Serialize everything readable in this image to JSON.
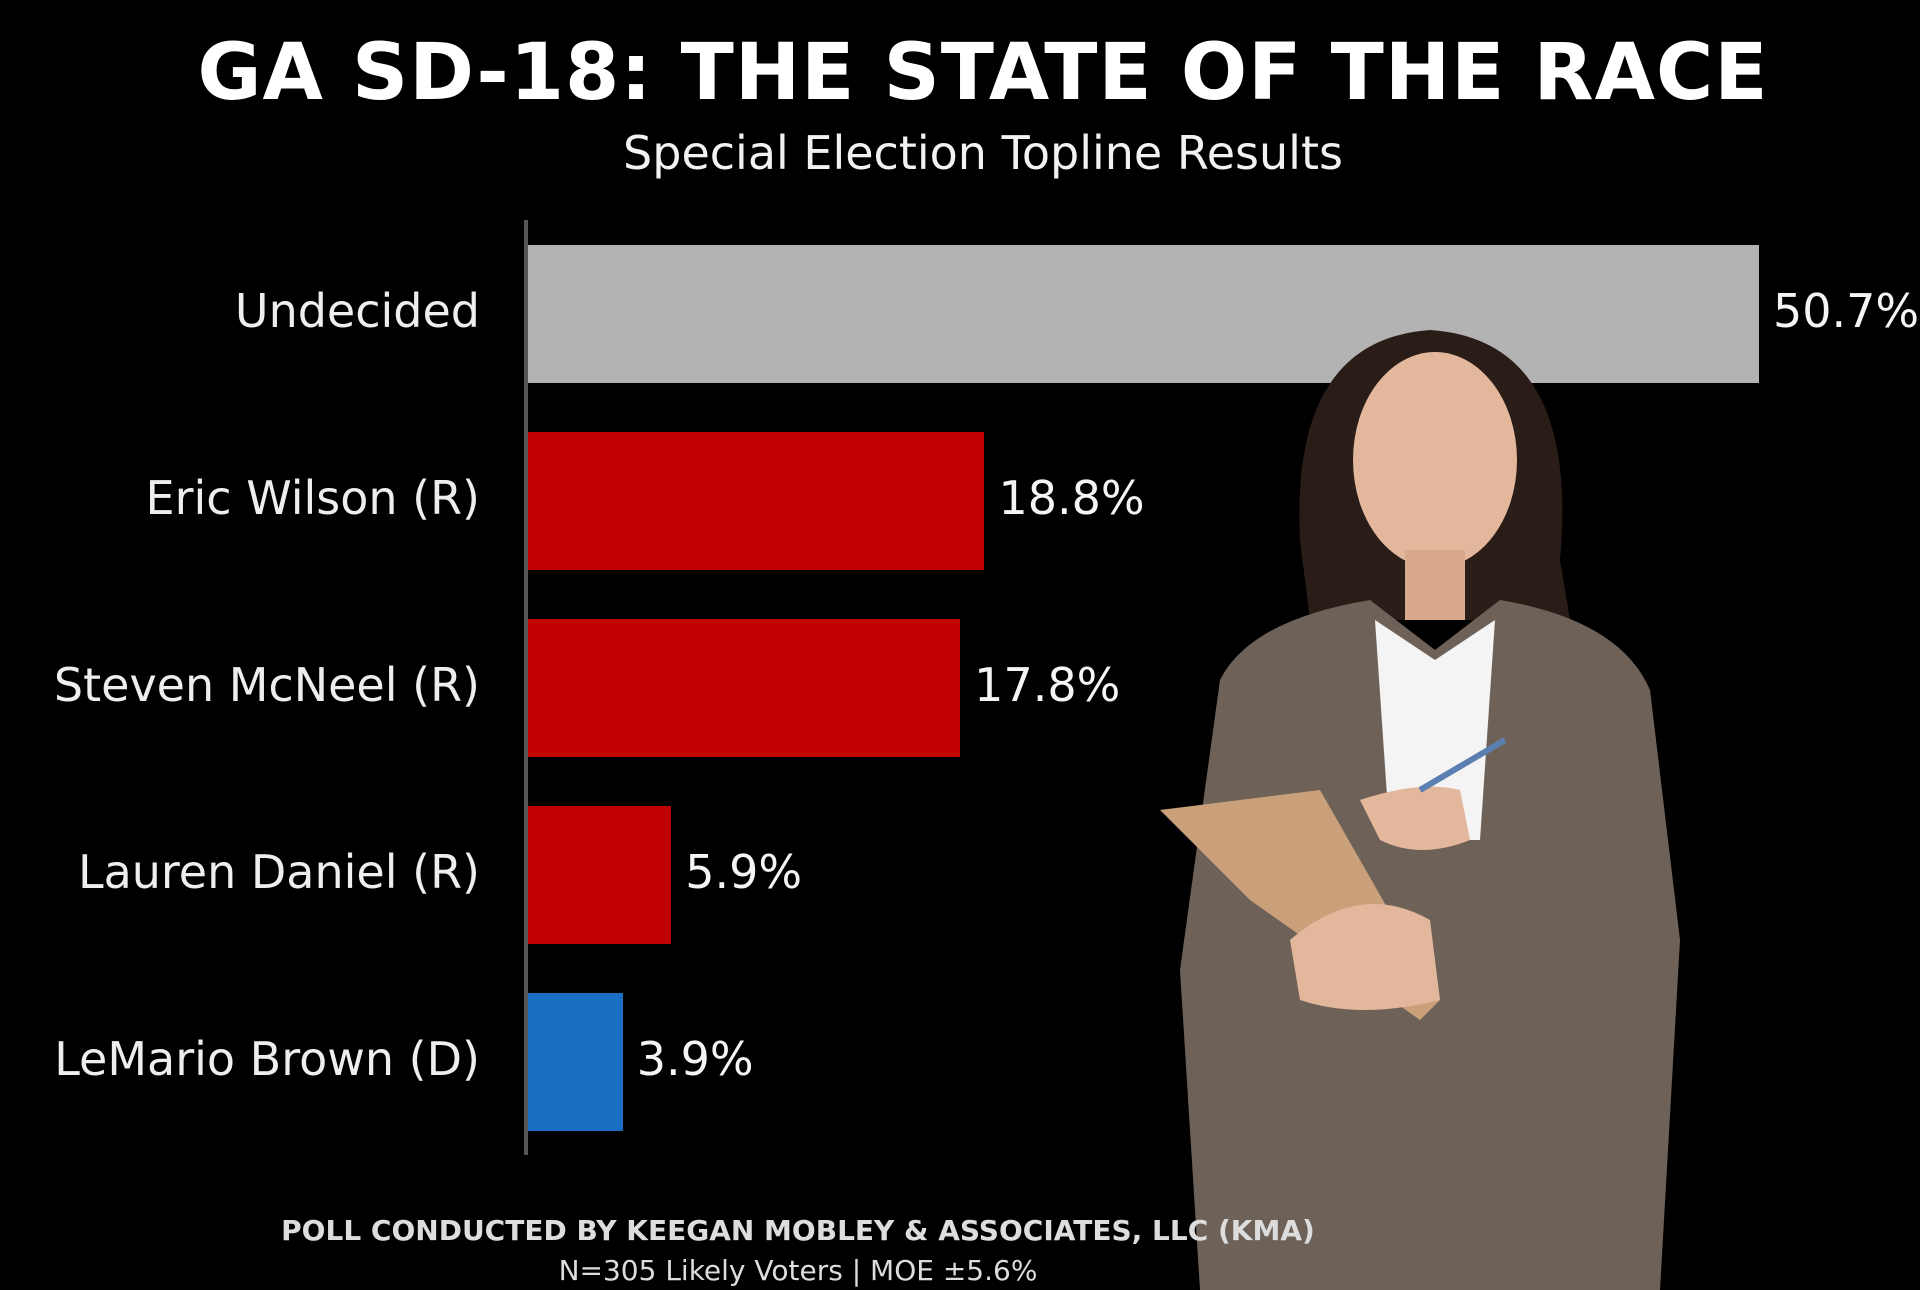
{
  "chart_data": {
    "type": "bar",
    "orientation": "horizontal",
    "title": "GA SD-18: THE STATE OF THE RACE",
    "subtitle": "Special Election Topline Results",
    "categories": [
      "Undecided",
      "Eric Wilson (R)",
      "Steven McNeel (R)",
      "Lauren Daniel (R)",
      "LeMario Brown (D)"
    ],
    "values": [
      50.7,
      18.8,
      17.8,
      5.9,
      3.9
    ],
    "value_labels": [
      "50.7%",
      "18.8%",
      "17.8%",
      "5.9%",
      "3.9%"
    ],
    "colors": [
      "#b3b3b3",
      "#c00000",
      "#c00000",
      "#c00000",
      "#1a6fc4"
    ],
    "xlim": [
      0,
      50.7
    ],
    "grid": false,
    "xlabel": "",
    "ylabel": ""
  },
  "footer": {
    "line1": "POLL CONDUCTED BY KEEGAN MOBLEY & ASSOCIATES, LLC (KMA)",
    "line2": "N=305 Likely Voters | MOE ±5.6%"
  }
}
